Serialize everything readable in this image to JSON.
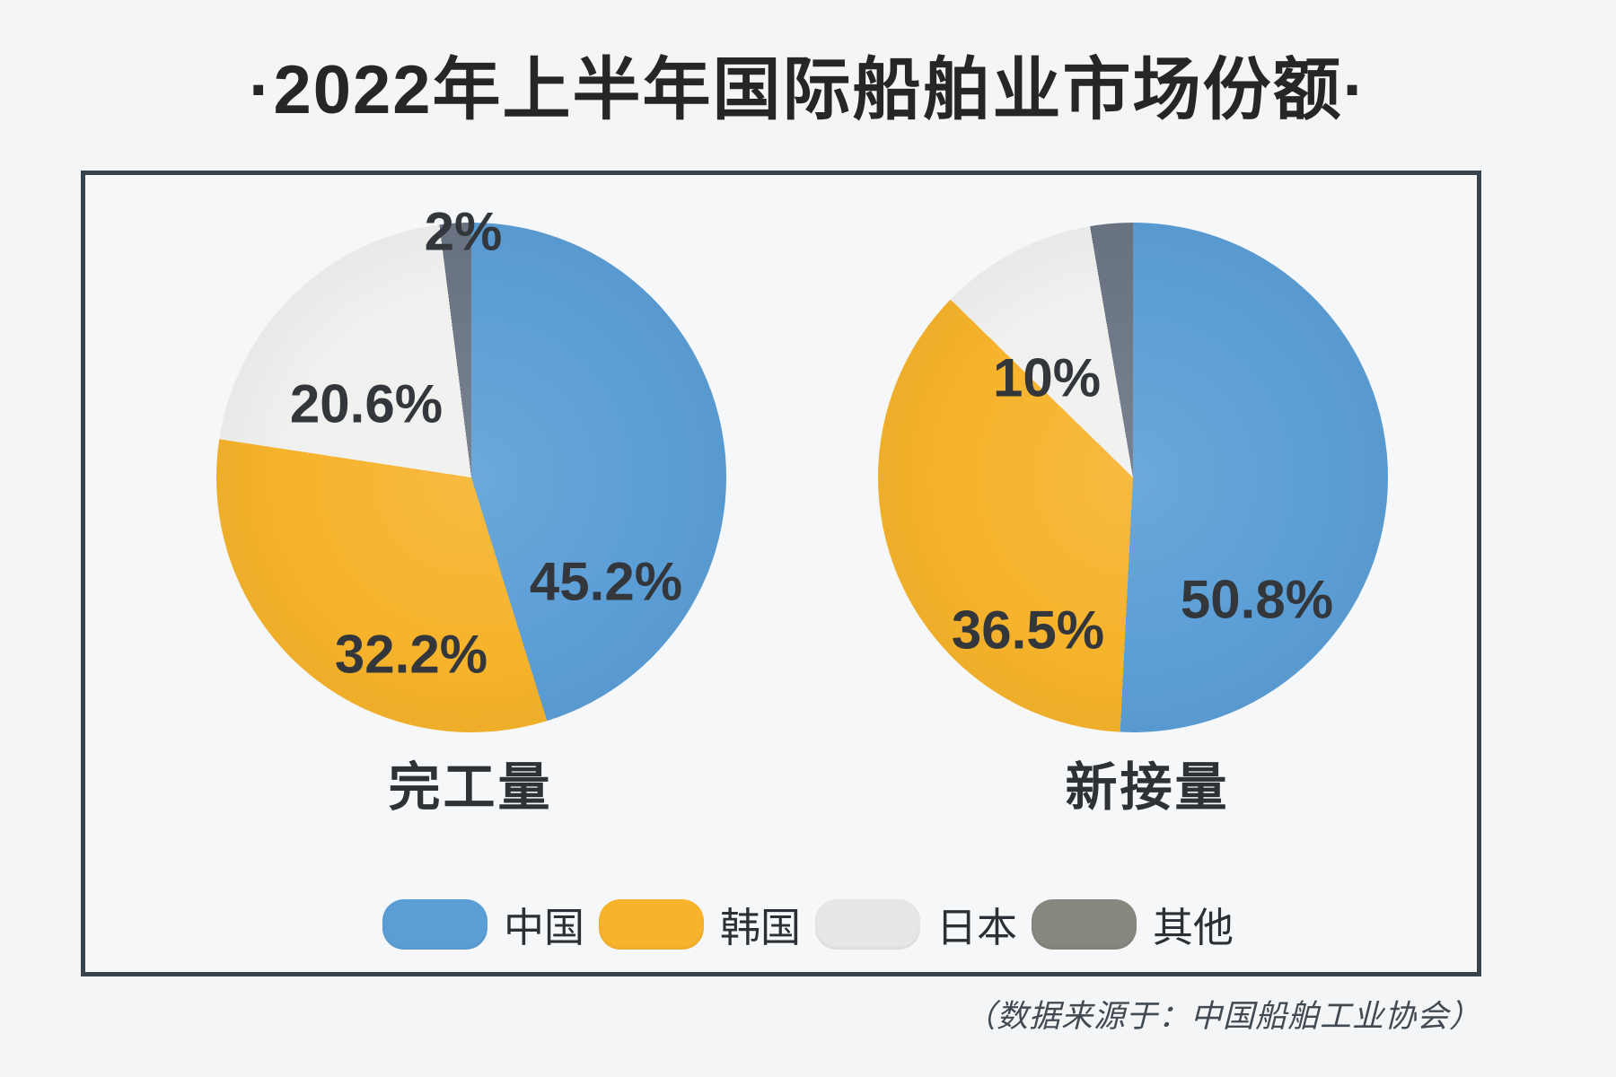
{
  "page": {
    "title": "·2022年上半年国际船舶业市场份额·",
    "source_note": "（数据来源于：中国船舶工业协会）"
  },
  "legend": {
    "items": [
      {
        "label": "中国",
        "color": "#5b9ed6"
      },
      {
        "label": "韩国",
        "color": "#f6b32b"
      },
      {
        "label": "日本",
        "color": "#e6e7e5"
      },
      {
        "label": "其他",
        "color": "#84887f"
      }
    ]
  },
  "chart_data": [
    {
      "type": "pie",
      "title": "完工量",
      "unit": "%",
      "categories": [
        "中国",
        "韩国",
        "日本",
        "其他"
      ],
      "values": [
        45.2,
        32.2,
        20.6,
        2.0
      ],
      "display_labels": [
        "45.2%",
        "32.2%",
        "20.6%",
        "2%"
      ],
      "colors": [
        "#5b9ed6",
        "#f6b32b",
        "#f0f1ef",
        "#6b7584"
      ],
      "start_angle_deg": 0,
      "direction": "clockwise"
    },
    {
      "type": "pie",
      "title": "新接量",
      "unit": "%",
      "categories": [
        "中国",
        "韩国",
        "日本",
        "其他"
      ],
      "values": [
        50.8,
        36.5,
        10.0,
        2.7
      ],
      "display_labels": [
        "50.8%",
        "36.5%",
        "10%",
        ""
      ],
      "colors": [
        "#5b9ed6",
        "#f6b32b",
        "#f0f1ef",
        "#6b7584"
      ],
      "start_angle_deg": 0,
      "direction": "clockwise"
    }
  ]
}
